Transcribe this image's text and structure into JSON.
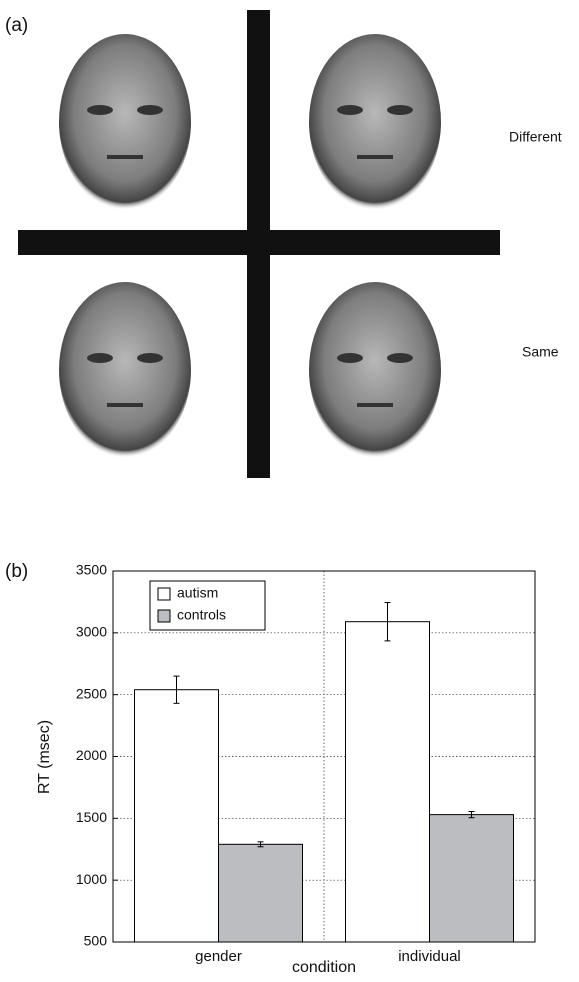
{
  "panel_a": {
    "label": "(a)",
    "row_labels": [
      "Different",
      "Same"
    ]
  },
  "chart_data": {
    "type": "bar",
    "panel_label": "(b)",
    "x_label": "condition",
    "y_label": "RT (msec)",
    "categories": [
      "gender",
      "individual"
    ],
    "series": [
      {
        "name": "autism",
        "color": "#ffffff",
        "values": [
          2540,
          3090
        ],
        "errors": [
          110,
          155
        ]
      },
      {
        "name": "controls",
        "color": "#bbbdc0",
        "values": [
          1290,
          1530
        ],
        "errors": [
          20,
          25
        ]
      }
    ],
    "ylim": [
      500,
      3500
    ],
    "yticks": [
      500,
      1000,
      1500,
      2000,
      2500,
      3000,
      3500
    ],
    "grid": true,
    "legend": "upper left"
  }
}
